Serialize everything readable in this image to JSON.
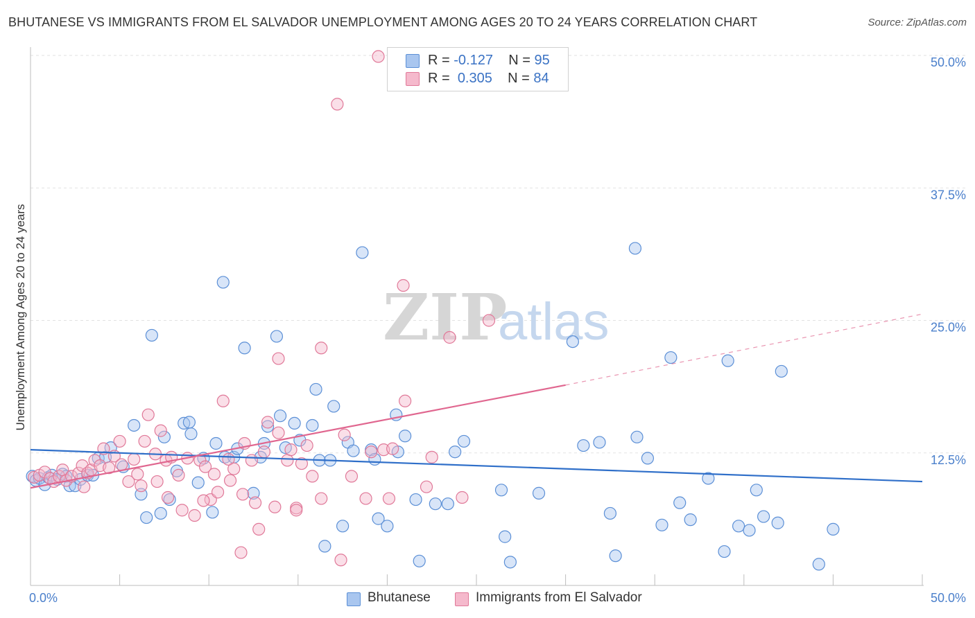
{
  "title": "BHUTANESE VS IMMIGRANTS FROM EL SALVADOR UNEMPLOYMENT AMONG AGES 20 TO 24 YEARS CORRELATION CHART",
  "source": "Source: ZipAtlas.com",
  "watermark": {
    "zip": "ZIP",
    "atlas": "atlas"
  },
  "legend": {
    "r_label": "R =",
    "n_label": "N =",
    "items": [
      {
        "name": "Bhutanese",
        "r": "-0.127",
        "n": "95",
        "fill": "#a9c6ef",
        "stroke": "#5b8fd6"
      },
      {
        "name": "Immigrants from El Salvador",
        "r": "0.305",
        "n": "84",
        "fill": "#f5b9cc",
        "stroke": "#e07898"
      }
    ]
  },
  "colors": {
    "blue_line": "#2f6fc9",
    "pink_line": "#e0668f",
    "axis_text": "#4a7fcb",
    "grid": "#e2e2e2"
  },
  "chart_data": {
    "type": "scatter",
    "title": "BHUTANESE VS IMMIGRANTS FROM EL SALVADOR UNEMPLOYMENT AMONG AGES 20 TO 24 YEARS CORRELATION CHART",
    "xlabel": "",
    "ylabel": "Unemployment Among Ages 20 to 24 years",
    "xlim": [
      0,
      50
    ],
    "ylim": [
      0,
      50
    ],
    "x_tick_labels": [
      "0.0%",
      "50.0%"
    ],
    "y_ticks": [
      12.5,
      25.0,
      37.5,
      50.0
    ],
    "y_tick_labels": [
      "12.5%",
      "25.0%",
      "37.5%",
      "50.0%"
    ],
    "grid": true,
    "series": [
      {
        "name": "Bhutanese",
        "trend": {
          "x": [
            0,
            50
          ],
          "y": [
            12.8,
            9.8
          ]
        },
        "points": [
          [
            0.1,
            10.3
          ],
          [
            0.3,
            9.9
          ],
          [
            0.5,
            10.1
          ],
          [
            0.8,
            9.5
          ],
          [
            1.0,
            10.2
          ],
          [
            1.2,
            10.4
          ],
          [
            1.5,
            10.0
          ],
          [
            1.8,
            10.5
          ],
          [
            2.0,
            10.3
          ],
          [
            2.2,
            9.4
          ],
          [
            2.5,
            9.4
          ],
          [
            2.8,
            10.0
          ],
          [
            3.2,
            10.4
          ],
          [
            3.5,
            10.4
          ],
          [
            3.8,
            12.0
          ],
          [
            4.2,
            12.1
          ],
          [
            4.5,
            13.0
          ],
          [
            5.2,
            11.2
          ],
          [
            5.8,
            15.1
          ],
          [
            6.2,
            8.6
          ],
          [
            6.5,
            6.4
          ],
          [
            6.8,
            23.6
          ],
          [
            7.3,
            6.8
          ],
          [
            7.5,
            14.0
          ],
          [
            7.8,
            8.1
          ],
          [
            8.2,
            10.8
          ],
          [
            8.6,
            15.3
          ],
          [
            8.9,
            15.4
          ],
          [
            9.0,
            14.3
          ],
          [
            9.4,
            9.7
          ],
          [
            9.7,
            12.0
          ],
          [
            10.2,
            6.9
          ],
          [
            10.4,
            13.4
          ],
          [
            10.8,
            28.6
          ],
          [
            10.9,
            12.1
          ],
          [
            11.4,
            12.1
          ],
          [
            11.6,
            12.9
          ],
          [
            12.0,
            22.4
          ],
          [
            12.5,
            8.7
          ],
          [
            12.9,
            12.1
          ],
          [
            13.1,
            13.4
          ],
          [
            13.3,
            15.0
          ],
          [
            13.8,
            23.5
          ],
          [
            14.0,
            16.0
          ],
          [
            14.3,
            13.0
          ],
          [
            14.8,
            15.3
          ],
          [
            15.1,
            13.7
          ],
          [
            15.8,
            15.1
          ],
          [
            16.0,
            18.5
          ],
          [
            16.2,
            11.8
          ],
          [
            16.5,
            3.7
          ],
          [
            16.8,
            11.8
          ],
          [
            17.0,
            16.9
          ],
          [
            17.5,
            5.6
          ],
          [
            17.8,
            13.5
          ],
          [
            18.1,
            12.7
          ],
          [
            18.6,
            31.4
          ],
          [
            19.1,
            12.8
          ],
          [
            19.3,
            11.9
          ],
          [
            19.5,
            6.3
          ],
          [
            20.0,
            5.6
          ],
          [
            20.5,
            16.1
          ],
          [
            20.6,
            12.6
          ],
          [
            21.0,
            14.1
          ],
          [
            21.6,
            8.1
          ],
          [
            21.8,
            2.3
          ],
          [
            22.7,
            7.7
          ],
          [
            23.4,
            7.7
          ],
          [
            23.8,
            12.6
          ],
          [
            24.3,
            13.6
          ],
          [
            26.4,
            9.0
          ],
          [
            26.6,
            4.6
          ],
          [
            26.9,
            2.2
          ],
          [
            28.5,
            8.7
          ],
          [
            30.4,
            23.0
          ],
          [
            31.0,
            13.2
          ],
          [
            31.9,
            13.5
          ],
          [
            32.5,
            6.8
          ],
          [
            32.8,
            2.8
          ],
          [
            33.9,
            31.8
          ],
          [
            34.0,
            14.0
          ],
          [
            34.6,
            12.0
          ],
          [
            35.4,
            5.7
          ],
          [
            35.9,
            21.5
          ],
          [
            36.4,
            7.8
          ],
          [
            37.0,
            6.2
          ],
          [
            38.0,
            10.1
          ],
          [
            39.1,
            21.2
          ],
          [
            38.9,
            3.2
          ],
          [
            39.7,
            5.6
          ],
          [
            40.3,
            5.2
          ],
          [
            40.7,
            9.0
          ],
          [
            41.1,
            6.5
          ],
          [
            41.9,
            5.9
          ],
          [
            42.1,
            20.2
          ],
          [
            44.2,
            2.0
          ],
          [
            45.0,
            5.3
          ]
        ]
      },
      {
        "name": "Immigrants from El Salvador",
        "trend": {
          "x": [
            0,
            30
          ],
          "y": [
            9.2,
            18.9
          ]
        },
        "trend_dashed": {
          "x": [
            30,
            50
          ],
          "y": [
            18.9,
            25.6
          ]
        },
        "points": [
          [
            0.2,
            10.2
          ],
          [
            0.5,
            10.4
          ],
          [
            0.8,
            10.7
          ],
          [
            1.1,
            10.1
          ],
          [
            1.3,
            9.8
          ],
          [
            1.6,
            10.3
          ],
          [
            1.8,
            10.9
          ],
          [
            2.0,
            9.9
          ],
          [
            2.3,
            10.3
          ],
          [
            2.7,
            10.6
          ],
          [
            2.9,
            11.3
          ],
          [
            3.2,
            10.6
          ],
          [
            3.4,
            10.9
          ],
          [
            3.6,
            11.8
          ],
          [
            3.9,
            11.3
          ],
          [
            4.1,
            12.9
          ],
          [
            4.4,
            11.1
          ],
          [
            4.7,
            12.2
          ],
          [
            5.1,
            11.4
          ],
          [
            5.0,
            13.6
          ],
          [
            5.5,
            9.8
          ],
          [
            6.0,
            10.5
          ],
          [
            6.2,
            9.4
          ],
          [
            6.4,
            13.6
          ],
          [
            6.6,
            16.1
          ],
          [
            7.0,
            12.4
          ],
          [
            7.3,
            14.6
          ],
          [
            7.6,
            11.8
          ],
          [
            7.9,
            12.1
          ],
          [
            7.7,
            8.3
          ],
          [
            8.3,
            10.4
          ],
          [
            8.5,
            7.1
          ],
          [
            8.8,
            12.0
          ],
          [
            9.2,
            6.6
          ],
          [
            9.5,
            11.8
          ],
          [
            9.8,
            11.2
          ],
          [
            10.1,
            8.1
          ],
          [
            10.3,
            10.5
          ],
          [
            10.5,
            8.8
          ],
          [
            10.8,
            17.4
          ],
          [
            11.1,
            11.9
          ],
          [
            11.4,
            11.0
          ],
          [
            11.8,
            3.1
          ],
          [
            11.9,
            8.6
          ],
          [
            12.4,
            11.8
          ],
          [
            12.6,
            7.8
          ],
          [
            12.8,
            5.3
          ],
          [
            13.1,
            12.6
          ],
          [
            13.3,
            15.4
          ],
          [
            13.7,
            7.4
          ],
          [
            13.9,
            14.4
          ],
          [
            14.4,
            11.8
          ],
          [
            14.6,
            12.8
          ],
          [
            14.9,
            7.3
          ],
          [
            15.2,
            11.5
          ],
          [
            15.5,
            13.2
          ],
          [
            15.8,
            10.3
          ],
          [
            16.3,
            8.2
          ],
          [
            17.2,
            45.4
          ],
          [
            17.4,
            2.4
          ],
          [
            17.6,
            14.2
          ],
          [
            18.0,
            10.3
          ],
          [
            18.8,
            8.2
          ],
          [
            19.1,
            12.6
          ],
          [
            19.8,
            12.8
          ],
          [
            20.1,
            8.2
          ],
          [
            20.3,
            12.9
          ],
          [
            20.9,
            28.3
          ],
          [
            21.0,
            17.4
          ],
          [
            22.2,
            9.3
          ],
          [
            22.5,
            12.1
          ],
          [
            23.5,
            23.4
          ],
          [
            24.2,
            8.3
          ],
          [
            25.7,
            25.0
          ],
          [
            16.3,
            22.4
          ],
          [
            19.5,
            49.9
          ],
          [
            13.9,
            21.4
          ],
          [
            9.7,
            8.0
          ],
          [
            11.2,
            9.9
          ],
          [
            12.0,
            13.4
          ],
          [
            14.9,
            7.1
          ],
          [
            7.1,
            9.8
          ],
          [
            5.8,
            11.9
          ],
          [
            3.0,
            9.3
          ]
        ]
      }
    ]
  }
}
